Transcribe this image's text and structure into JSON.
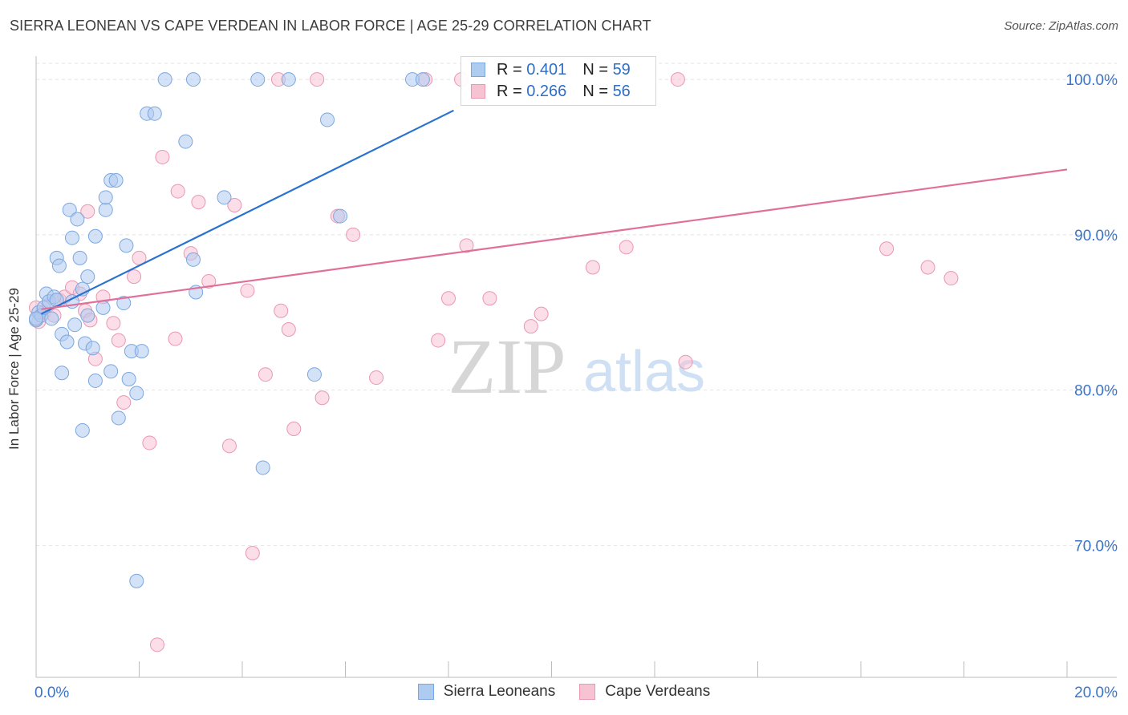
{
  "title": "SIERRA LEONEAN VS CAPE VERDEAN IN LABOR FORCE | AGE 25-29 CORRELATION CHART",
  "source": "Source: ZipAtlas.com",
  "watermark": {
    "zip": "ZIP",
    "atlas": "atlas"
  },
  "legend": {
    "r_label": "R =",
    "n_label": "N =",
    "series": [
      {
        "name": "Sierra Leoneans",
        "r": "0.401",
        "n": "59",
        "fill": "#aecbf0",
        "stroke": "#7aa7e0"
      },
      {
        "name": "Cape Verdeans",
        "r": "0.266",
        "n": "56",
        "fill": "#f7c3d3",
        "stroke": "#ea97b2"
      }
    ]
  },
  "chart_data": {
    "type": "scatter",
    "title": "SIERRA LEONEAN VS CAPE VERDEAN IN LABOR FORCE | AGE 25-29 CORRELATION CHART",
    "xlabel": "",
    "ylabel": "In Labor Force | Age 25-29",
    "xlim": [
      0,
      20
    ],
    "ylim": [
      61.5,
      101.5
    ],
    "x_tick_labels": [
      "0.0%",
      "20.0%"
    ],
    "y_ticks": [
      70,
      80,
      90,
      100
    ],
    "y_tick_labels": [
      "70.0%",
      "80.0%",
      "90.0%",
      "100.0%"
    ],
    "grid": true,
    "colors": {
      "blue_line": "#2a72cf",
      "pink_line": "#e0709a",
      "tick_text": "#3a74c8"
    },
    "series": [
      {
        "name": "Sierra Leoneans",
        "trend": {
          "x": [
            0.1,
            8.1
          ],
          "y": [
            84.9,
            98.0
          ]
        },
        "points": [
          [
            0.0,
            84.5
          ],
          [
            0.05,
            85.0
          ],
          [
            0.1,
            84.8
          ],
          [
            0.15,
            85.3
          ],
          [
            0.2,
            86.2
          ],
          [
            0.25,
            85.7
          ],
          [
            0.3,
            84.6
          ],
          [
            0.35,
            86.0
          ],
          [
            0.4,
            88.5
          ],
          [
            0.4,
            85.8
          ],
          [
            0.45,
            88.0
          ],
          [
            0.5,
            83.6
          ],
          [
            0.5,
            81.1
          ],
          [
            0.6,
            83.1
          ],
          [
            0.65,
            91.6
          ],
          [
            0.7,
            89.8
          ],
          [
            0.7,
            85.7
          ],
          [
            0.75,
            84.2
          ],
          [
            0.8,
            91.0
          ],
          [
            0.85,
            88.5
          ],
          [
            0.9,
            77.4
          ],
          [
            0.9,
            86.5
          ],
          [
            0.95,
            83.0
          ],
          [
            1.0,
            87.3
          ],
          [
            1.0,
            84.8
          ],
          [
            1.1,
            82.7
          ],
          [
            1.15,
            89.9
          ],
          [
            1.15,
            80.6
          ],
          [
            1.3,
            85.3
          ],
          [
            1.35,
            91.6
          ],
          [
            1.35,
            92.4
          ],
          [
            1.45,
            93.5
          ],
          [
            1.45,
            81.2
          ],
          [
            1.55,
            93.5
          ],
          [
            1.6,
            78.2
          ],
          [
            1.7,
            85.6
          ],
          [
            1.75,
            89.3
          ],
          [
            1.8,
            80.7
          ],
          [
            1.85,
            82.5
          ],
          [
            1.95,
            79.8
          ],
          [
            2.05,
            82.5
          ],
          [
            2.15,
            97.8
          ],
          [
            2.3,
            97.8
          ],
          [
            2.5,
            100.0
          ],
          [
            2.9,
            96.0
          ],
          [
            3.05,
            100.0
          ],
          [
            3.05,
            88.4
          ],
          [
            3.1,
            86.3
          ],
          [
            3.65,
            92.4
          ],
          [
            4.3,
            100.0
          ],
          [
            4.4,
            75.0
          ],
          [
            4.9,
            100.0
          ],
          [
            5.4,
            81.0
          ],
          [
            5.65,
            97.4
          ],
          [
            5.9,
            91.2
          ],
          [
            7.3,
            100.0
          ],
          [
            7.5,
            100.0
          ],
          [
            1.95,
            67.7
          ],
          [
            0.0,
            84.6
          ]
        ]
      },
      {
        "name": "Cape Verdeans",
        "trend": {
          "x": [
            0.1,
            20.0
          ],
          "y": [
            85.2,
            94.2
          ]
        },
        "points": [
          [
            0.0,
            85.3
          ],
          [
            0.05,
            84.4
          ],
          [
            0.15,
            85.0
          ],
          [
            0.25,
            85.5
          ],
          [
            0.35,
            84.8
          ],
          [
            0.45,
            85.8
          ],
          [
            0.55,
            86.0
          ],
          [
            0.7,
            86.6
          ],
          [
            0.85,
            86.2
          ],
          [
            0.95,
            85.1
          ],
          [
            1.0,
            91.5
          ],
          [
            1.05,
            84.5
          ],
          [
            1.15,
            82.0
          ],
          [
            1.3,
            86.0
          ],
          [
            1.5,
            84.3
          ],
          [
            1.6,
            83.2
          ],
          [
            1.7,
            79.2
          ],
          [
            1.9,
            87.3
          ],
          [
            2.0,
            88.5
          ],
          [
            2.2,
            76.6
          ],
          [
            2.35,
            63.6
          ],
          [
            2.45,
            95.0
          ],
          [
            2.7,
            83.3
          ],
          [
            2.75,
            92.8
          ],
          [
            3.0,
            88.8
          ],
          [
            3.15,
            92.1
          ],
          [
            3.35,
            87.0
          ],
          [
            3.75,
            76.4
          ],
          [
            3.85,
            91.9
          ],
          [
            4.1,
            86.4
          ],
          [
            4.2,
            69.5
          ],
          [
            4.45,
            81.0
          ],
          [
            4.7,
            100.0
          ],
          [
            4.75,
            85.1
          ],
          [
            4.9,
            83.9
          ],
          [
            5.0,
            77.5
          ],
          [
            5.45,
            100.0
          ],
          [
            5.55,
            79.5
          ],
          [
            5.85,
            91.2
          ],
          [
            6.15,
            90.0
          ],
          [
            6.6,
            80.8
          ],
          [
            7.55,
            100.0
          ],
          [
            7.8,
            83.2
          ],
          [
            8.0,
            85.9
          ],
          [
            8.25,
            100.0
          ],
          [
            8.35,
            89.3
          ],
          [
            8.8,
            85.9
          ],
          [
            9.6,
            84.1
          ],
          [
            9.8,
            84.9
          ],
          [
            10.8,
            87.9
          ],
          [
            11.45,
            89.2
          ],
          [
            12.6,
            81.8
          ],
          [
            12.45,
            100.0
          ],
          [
            16.5,
            89.1
          ],
          [
            17.3,
            87.9
          ],
          [
            17.75,
            87.2
          ]
        ]
      }
    ]
  }
}
